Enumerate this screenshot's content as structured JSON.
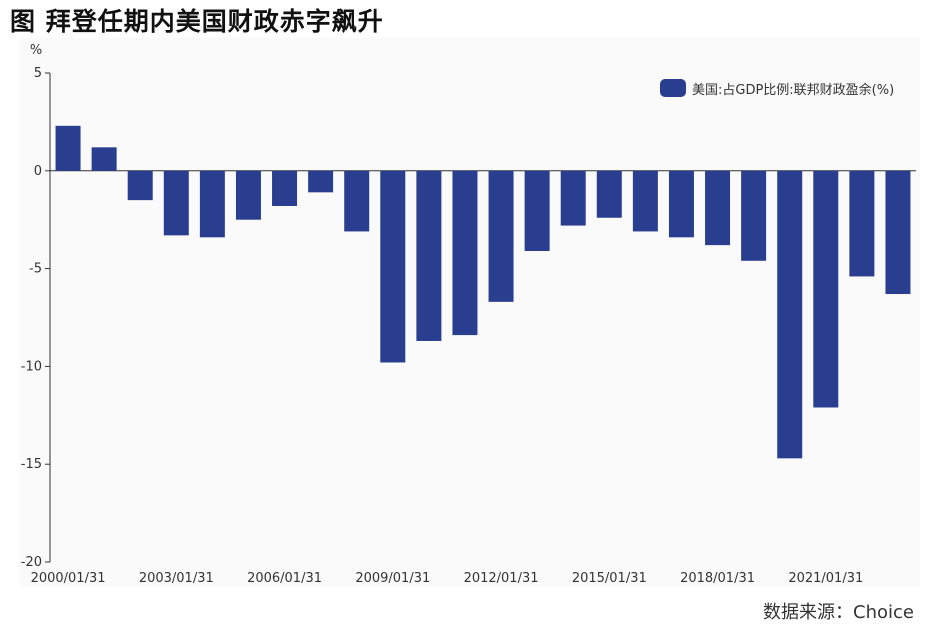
{
  "figure": {
    "title": "图  拜登任期内美国财政赤字飙升",
    "source": "数据来源：Choice"
  },
  "colors": {
    "bar": "#2a3e8f",
    "axis": "#333333"
  },
  "chart_data": {
    "type": "bar",
    "title": "",
    "xlabel": "",
    "ylabel": "%",
    "ylim": [
      -20,
      5
    ],
    "yticks": [
      5,
      0,
      -5,
      -10,
      -15,
      -20
    ],
    "xtick_labels": [
      "2000/01/31",
      "2003/01/31",
      "2006/01/31",
      "2009/01/31",
      "2012/01/31",
      "2015/01/31",
      "2018/01/31",
      "2021/01/31"
    ],
    "legend_position": "top-right",
    "grid": false,
    "series": [
      {
        "name": "美国:占GDP比例:联邦财政盈余(%)",
        "categories": [
          "2000/01/31",
          "2001/01/31",
          "2002/01/31",
          "2003/01/31",
          "2004/01/31",
          "2005/01/31",
          "2006/01/31",
          "2007/01/31",
          "2008/01/31",
          "2009/01/31",
          "2010/01/31",
          "2011/01/31",
          "2012/01/31",
          "2013/01/31",
          "2014/01/31",
          "2015/01/31",
          "2016/01/31",
          "2017/01/31",
          "2018/01/31",
          "2019/01/31",
          "2020/01/31",
          "2021/01/31",
          "2022/01/31",
          "2023/01/31"
        ],
        "values": [
          2.3,
          1.2,
          -1.5,
          -3.3,
          -3.4,
          -2.5,
          -1.8,
          -1.1,
          -3.1,
          -9.8,
          -8.7,
          -8.4,
          -6.7,
          -4.1,
          -2.8,
          -2.4,
          -3.1,
          -3.4,
          -3.8,
          -4.6,
          -14.7,
          -12.1,
          -5.4,
          -6.3
        ]
      }
    ]
  }
}
